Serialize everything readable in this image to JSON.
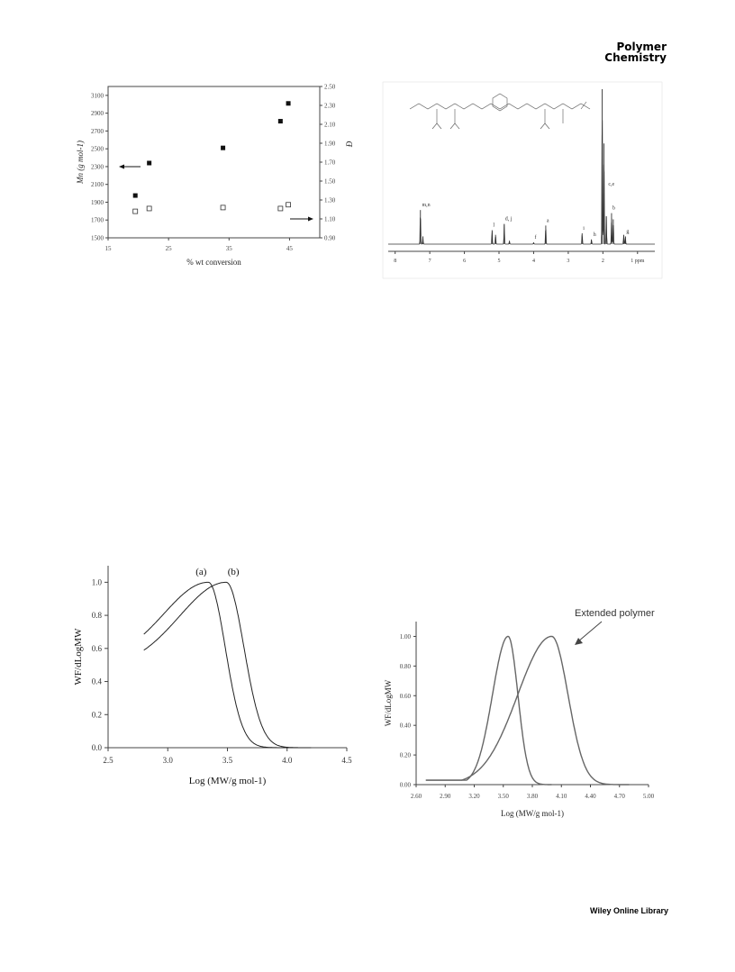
{
  "header": {
    "journal_line1": "Polymer",
    "journal_line2": "Chemistry"
  },
  "footer": {
    "text": "Wiley Online Library"
  },
  "chart_data": [
    {
      "type": "scatter",
      "xlabel": "% wt conversion",
      "ylabel_left": "Mn (g mol-1)",
      "ylabel_right": "Đ",
      "x_ticks": [
        "15",
        "25",
        "35",
        "45"
      ],
      "y_left_ticks": [
        "1500",
        "1700",
        "1900",
        "2100",
        "2300",
        "2500",
        "2700",
        "2900",
        "3100"
      ],
      "y_right_ticks": [
        "0.90",
        "1.10",
        "1.30",
        "1.50",
        "1.70",
        "1.90",
        "2.10",
        "2.30",
        "2.50"
      ],
      "xlim": [
        15,
        50
      ],
      "ylim_left": [
        1500,
        3200
      ],
      "ylim_right": [
        0.9,
        2.5
      ],
      "series": [
        {
          "name": "Mn",
          "marker": "filled-square",
          "axis": "left",
          "x": [
            19.5,
            21.8,
            34.0,
            43.5,
            44.8
          ],
          "y": [
            1975,
            2340,
            2510,
            2810,
            3010
          ]
        },
        {
          "name": "Đ",
          "marker": "open-square",
          "axis": "right",
          "x": [
            19.5,
            21.8,
            34.0,
            43.5,
            44.8
          ],
          "y": [
            1.18,
            1.21,
            1.22,
            1.21,
            1.25
          ]
        }
      ],
      "arrows": [
        "left-axis",
        "right-axis"
      ]
    },
    {
      "type": "line",
      "subtype": "nmr-spectrum",
      "x_ticks": [
        "8",
        "7",
        "6",
        "5",
        "4",
        "3",
        "2",
        "1 ppm"
      ],
      "xlim": [
        8.2,
        0.5
      ],
      "peak_labels": [
        {
          "text": "m,n",
          "ppm": 7.25
        },
        {
          "text": "l",
          "ppm": 5.2
        },
        {
          "text": "d, j",
          "ppm": 4.85
        },
        {
          "text": "f",
          "ppm": 4.0
        },
        {
          "text": "a",
          "ppm": 3.65
        },
        {
          "text": "i",
          "ppm": 2.6
        },
        {
          "text": "h",
          "ppm": 2.3
        },
        {
          "text": "c,e",
          "ppm": 2.0
        },
        {
          "text": "b",
          "ppm": 1.75
        },
        {
          "text": "g",
          "ppm": 1.35
        }
      ],
      "peaks": [
        {
          "ppm": 7.27,
          "height": 0.22
        },
        {
          "ppm": 7.2,
          "height": 0.05
        },
        {
          "ppm": 5.2,
          "height": 0.09
        },
        {
          "ppm": 5.1,
          "height": 0.06
        },
        {
          "ppm": 4.85,
          "height": 0.13
        },
        {
          "ppm": 4.7,
          "height": 0.02
        },
        {
          "ppm": 4.0,
          "height": 0.01
        },
        {
          "ppm": 3.65,
          "height": 0.12
        },
        {
          "ppm": 2.6,
          "height": 0.07
        },
        {
          "ppm": 2.33,
          "height": 0.03
        },
        {
          "ppm": 2.02,
          "height": 1.0
        },
        {
          "ppm": 1.97,
          "height": 0.65
        },
        {
          "ppm": 1.9,
          "height": 0.18
        },
        {
          "ppm": 1.75,
          "height": 0.2
        },
        {
          "ppm": 1.7,
          "height": 0.16
        },
        {
          "ppm": 1.4,
          "height": 0.06
        },
        {
          "ppm": 1.35,
          "height": 0.05
        }
      ]
    },
    {
      "type": "line",
      "xlabel": "Log (MW/g mol-1)",
      "ylabel": "WF/dLogMW",
      "x_ticks": [
        "2.5",
        "3.0",
        "3.5",
        "4.0",
        "4.5"
      ],
      "y_ticks": [
        "0.0",
        "0.2",
        "0.4",
        "0.6",
        "0.8",
        "1.0"
      ],
      "xlim": [
        2.5,
        4.5
      ],
      "ylim": [
        0,
        1.1
      ],
      "series": [
        {
          "name": "(a)",
          "start": 2.8,
          "end": 4.1,
          "peak": 3.34,
          "left_sigma": 0.55,
          "right_sigma": 0.21,
          "y_start": 0.52
        },
        {
          "name": "(b)",
          "start": 2.8,
          "end": 4.2,
          "peak": 3.49,
          "left_sigma": 0.58,
          "right_sigma": 0.22,
          "y_start": 0.48
        }
      ]
    },
    {
      "type": "line",
      "xlabel": "Log (MW/g mol-1)",
      "ylabel": "WF/dLogMW",
      "annotation": "Extended polymer",
      "x_ticks": [
        "2.60",
        "2.90",
        "3.20",
        "3.50",
        "3.80",
        "4.10",
        "4.40",
        "4.70",
        "5.00"
      ],
      "y_ticks": [
        "0.00",
        "0.20",
        "0.40",
        "0.60",
        "0.80",
        "1.00"
      ],
      "xlim": [
        2.6,
        5.0
      ],
      "ylim": [
        0,
        1.1
      ],
      "series": [
        {
          "start": 2.7,
          "end": 4.0,
          "peak": 3.55,
          "left_sigma": 0.24,
          "right_sigma": 0.15,
          "base": 0.03
        },
        {
          "start": 2.7,
          "end": 4.8,
          "peak": 4.0,
          "left_sigma": 0.52,
          "right_sigma": 0.25,
          "base": 0.03
        }
      ]
    }
  ]
}
